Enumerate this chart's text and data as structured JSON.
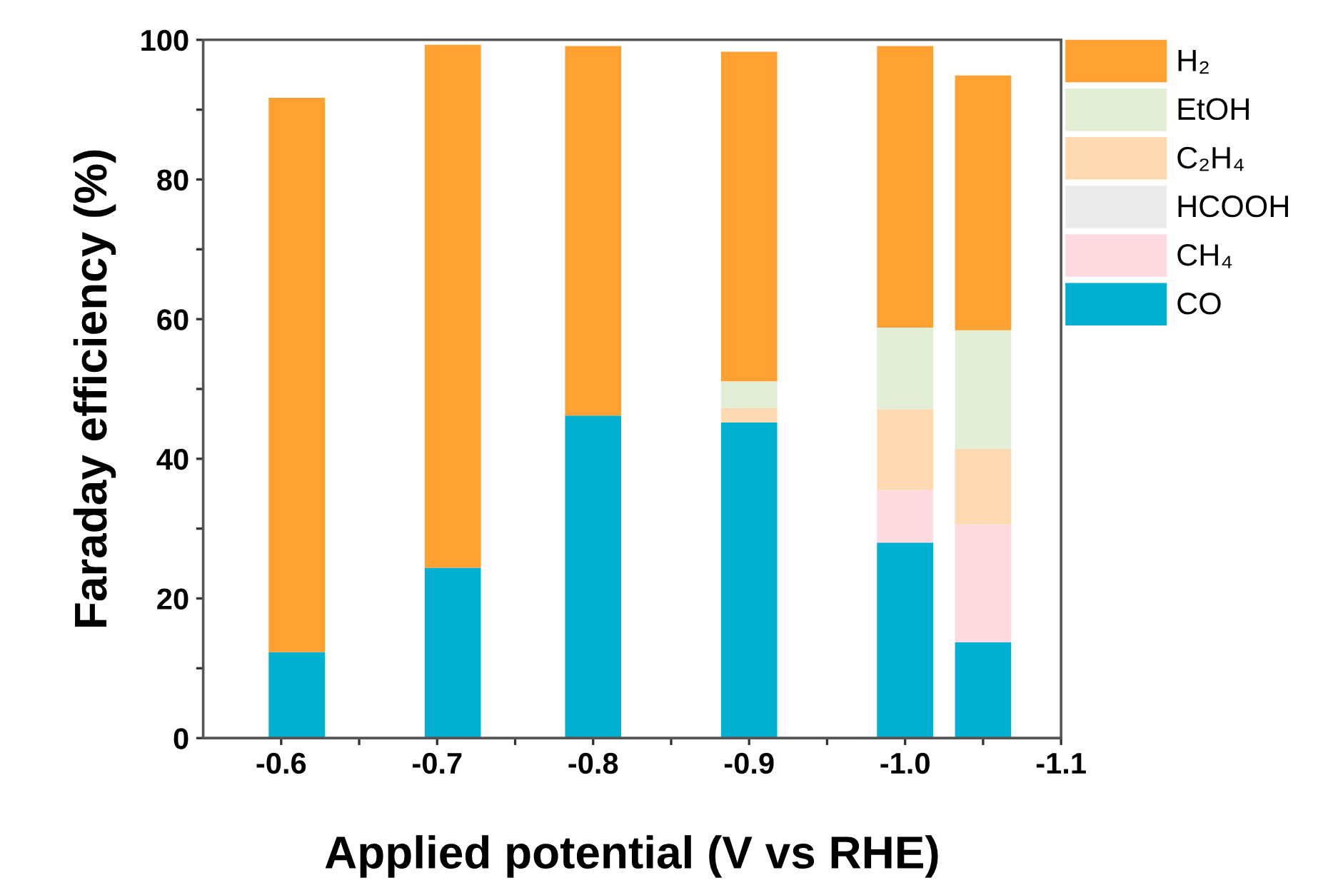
{
  "chart_data": {
    "type": "bar",
    "stacked": true,
    "xlabel": "Applied potential (V vs RHE)",
    "ylabel": "Faraday efficiency (%)",
    "x": [
      -0.61,
      -0.71,
      -0.8,
      -0.9,
      -1.0,
      -1.05
    ],
    "series": [
      {
        "name": "CO",
        "color": "#00b0d0",
        "values": [
          12.3,
          24.4,
          46.2,
          45.2,
          28.0,
          13.7
        ]
      },
      {
        "name": "CH₄",
        "color": "#fddbe0",
        "values": [
          0,
          0,
          0,
          0,
          7.5,
          16.9
        ]
      },
      {
        "name": "HCOOH",
        "color": "#ebebeb",
        "values": [
          0,
          0,
          0,
          0,
          0,
          0
        ]
      },
      {
        "name": "C₂H₄",
        "color": "#fdd9b2",
        "values": [
          0,
          0,
          0,
          2.1,
          11.6,
          10.8
        ]
      },
      {
        "name": "EtOH",
        "color": "#e2eed6",
        "values": [
          0,
          0,
          0,
          3.8,
          11.7,
          17.0
        ]
      },
      {
        "name": "H₂",
        "color": "#ffa033",
        "values": [
          79.4,
          74.9,
          52.9,
          47.2,
          40.3,
          36.5
        ]
      }
    ],
    "xlim": [
      -0.55,
      -1.1
    ],
    "ylim": [
      0,
      100
    ],
    "xticks": [
      {
        "value": -0.6,
        "label": "-0.6"
      },
      {
        "value": -0.65,
        "label": null
      },
      {
        "value": -0.7,
        "label": "-0.7"
      },
      {
        "value": -0.75,
        "label": null
      },
      {
        "value": -0.8,
        "label": "-0.8"
      },
      {
        "value": -0.85,
        "label": null
      },
      {
        "value": -0.9,
        "label": "-0.9"
      },
      {
        "value": -0.95,
        "label": null
      },
      {
        "value": -1.0,
        "label": "-1.0"
      },
      {
        "value": -1.05,
        "label": null
      },
      {
        "value": -1.1,
        "label": "-1.1"
      }
    ],
    "yticks": [
      0,
      {
        "value": 10,
        "label": null
      },
      20,
      {
        "value": 30,
        "label": null
      },
      40,
      {
        "value": 50,
        "label": null
      },
      60,
      {
        "value": 70,
        "label": null
      },
      80,
      {
        "value": 90,
        "label": null
      },
      100
    ],
    "grid": false,
    "legend": "top right"
  }
}
